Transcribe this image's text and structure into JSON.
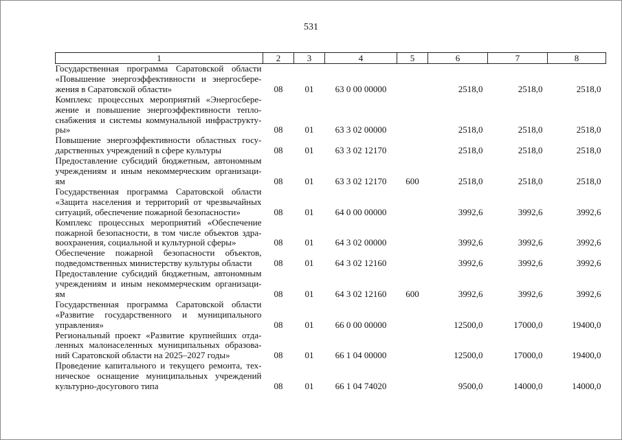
{
  "page_number": "531",
  "headers": [
    "1",
    "2",
    "3",
    "4",
    "5",
    "6",
    "7",
    "8"
  ],
  "rows": [
    {
      "lines": [
        "Государственная программа Саратовской области",
        "«Повышение энергоэффективности и энергосбере-",
        "жения в Саратовской области»"
      ],
      "c2": "08",
      "c3": "01",
      "c4": "63 0 00 00000",
      "c5": "",
      "c6": "2518,0",
      "c7": "2518,0",
      "c8": "2518,0"
    },
    {
      "lines": [
        "Комплекс процессных мероприятий «Энергосбере-",
        "жение и повышение энергоэффективности тепло-",
        "снабжения и системы коммунальной инфраструкту-",
        "ры»"
      ],
      "c2": "08",
      "c3": "01",
      "c4": "63 3 02 00000",
      "c5": "",
      "c6": "2518,0",
      "c7": "2518,0",
      "c8": "2518,0"
    },
    {
      "lines": [
        "Повышение энергоэффективности областных госу-",
        "дарственных учреждений в сфере культуры"
      ],
      "c2": "08",
      "c3": "01",
      "c4": "63 3 02 12170",
      "c5": "",
      "c6": "2518,0",
      "c7": "2518,0",
      "c8": "2518,0"
    },
    {
      "lines": [
        "Предоставление субсидий бюджетным, автономным",
        "учреждениям и иным некоммерческим организаци-",
        "ям"
      ],
      "c2": "08",
      "c3": "01",
      "c4": "63 3 02 12170",
      "c5": "600",
      "c6": "2518,0",
      "c7": "2518,0",
      "c8": "2518,0"
    },
    {
      "lines": [
        "Государственная программа Саратовской области",
        "«Защита населения и территорий от чрезвычайных",
        "ситуаций, обеспечение пожарной безопасности»"
      ],
      "c2": "08",
      "c3": "01",
      "c4": "64 0 00 00000",
      "c5": "",
      "c6": "3992,6",
      "c7": "3992,6",
      "c8": "3992,6"
    },
    {
      "lines": [
        "Комплекс процессных мероприятий «Обеспечение",
        "пожарной безопасности, в том числе объектов здра-",
        "воохранения, социальной и культурной сферы»"
      ],
      "c2": "08",
      "c3": "01",
      "c4": "64 3 02 00000",
      "c5": "",
      "c6": "3992,6",
      "c7": "3992,6",
      "c8": "3992,6"
    },
    {
      "lines": [
        "Обеспечение пожарной безопасности объектов,",
        "подведомственных министерству культуры области"
      ],
      "c2": "08",
      "c3": "01",
      "c4": "64 3 02 12160",
      "c5": "",
      "c6": "3992,6",
      "c7": "3992,6",
      "c8": "3992,6"
    },
    {
      "lines": [
        "Предоставление субсидий бюджетным, автономным",
        "учреждениям и иным некоммерческим организаци-",
        "ям"
      ],
      "c2": "08",
      "c3": "01",
      "c4": "64 3 02 12160",
      "c5": "600",
      "c6": "3992,6",
      "c7": "3992,6",
      "c8": "3992,6"
    },
    {
      "lines": [
        "Государственная программа Саратовской области",
        "«Развитие государственного и муниципального",
        "управления»"
      ],
      "c2": "08",
      "c3": "01",
      "c4": "66 0 00 00000",
      "c5": "",
      "c6": "12500,0",
      "c7": "17000,0",
      "c8": "19400,0"
    },
    {
      "lines": [
        "Региональный проект «Развитие крупнейших отда-",
        "ленных малонаселенных муниципальных образова-",
        "ний Саратовской области на 2025–2027 годы»"
      ],
      "c2": "08",
      "c3": "01",
      "c4": "66 1 04 00000",
      "c5": "",
      "c6": "12500,0",
      "c7": "17000,0",
      "c8": "19400,0"
    },
    {
      "lines": [
        "Проведение капитального и текущего ремонта, тех-",
        "ническое оснащение муниципальных учреждений",
        "культурно-досугового типа"
      ],
      "c2": "08",
      "c3": "01",
      "c4": "66 1 04 74020",
      "c5": "",
      "c6": "9500,0",
      "c7": "14000,0",
      "c8": "14000,0"
    }
  ]
}
